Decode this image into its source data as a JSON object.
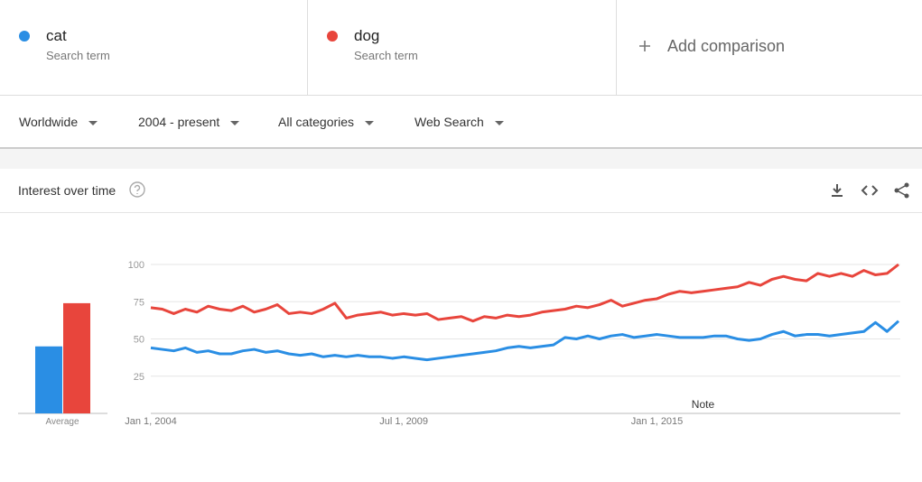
{
  "header": {
    "terms": [
      {
        "name": "cat",
        "subtitle": "Search term"
      },
      {
        "name": "dog",
        "subtitle": "Search term"
      }
    ],
    "add_comparison": "Add comparison"
  },
  "filters": [
    "Worldwide",
    "2004 - present",
    "All categories",
    "Web Search"
  ],
  "card": {
    "title": "Interest over time"
  },
  "chart_data": {
    "type": "line",
    "x": [
      "2004-01-01",
      "2004-04-01",
      "2004-07-01",
      "2004-10-01",
      "2005-01-01",
      "2005-04-01",
      "2005-07-01",
      "2005-10-01",
      "2006-01-01",
      "2006-04-01",
      "2006-07-01",
      "2006-10-01",
      "2007-01-01",
      "2007-04-01",
      "2007-07-01",
      "2007-10-01",
      "2008-01-01",
      "2008-04-01",
      "2008-07-01",
      "2008-10-01",
      "2009-01-01",
      "2009-04-01",
      "2009-07-01",
      "2009-10-01",
      "2010-01-01",
      "2010-04-01",
      "2010-07-01",
      "2010-10-01",
      "2011-01-01",
      "2011-04-01",
      "2011-07-01",
      "2011-10-01",
      "2012-01-01",
      "2012-04-01",
      "2012-07-01",
      "2012-10-01",
      "2013-01-01",
      "2013-04-01",
      "2013-07-01",
      "2013-10-01",
      "2014-01-01",
      "2014-04-01",
      "2014-07-01",
      "2014-10-01",
      "2015-01-01",
      "2015-04-01",
      "2015-07-01",
      "2015-10-01",
      "2016-01-01",
      "2016-04-01",
      "2016-07-01",
      "2016-10-01",
      "2017-01-01",
      "2017-04-01",
      "2017-07-01",
      "2017-10-01",
      "2018-01-01",
      "2018-04-01",
      "2018-07-01",
      "2018-10-01",
      "2019-01-01",
      "2019-04-01",
      "2019-07-01",
      "2019-10-01",
      "2020-01-01",
      "2020-04-01"
    ],
    "series": [
      {
        "name": "cat",
        "color": "#2a8ee4",
        "average": 45,
        "values": [
          44,
          43,
          42,
          44,
          41,
          42,
          40,
          40,
          42,
          43,
          41,
          42,
          40,
          39,
          40,
          38,
          39,
          38,
          39,
          38,
          38,
          37,
          38,
          37,
          36,
          37,
          38,
          39,
          40,
          41,
          42,
          44,
          45,
          44,
          45,
          46,
          51,
          50,
          52,
          50,
          52,
          53,
          51,
          52,
          53,
          52,
          51,
          51,
          51,
          52,
          52,
          50,
          49,
          50,
          53,
          55,
          52,
          53,
          53,
          52,
          53,
          54,
          55,
          61,
          55,
          62
        ]
      },
      {
        "name": "dog",
        "color": "#e8453c",
        "average": 74,
        "values": [
          71,
          70,
          67,
          70,
          68,
          72,
          70,
          69,
          72,
          68,
          70,
          73,
          67,
          68,
          67,
          70,
          74,
          64,
          66,
          67,
          68,
          66,
          67,
          66,
          67,
          63,
          64,
          65,
          62,
          65,
          64,
          66,
          65,
          66,
          68,
          69,
          70,
          72,
          71,
          73,
          76,
          72,
          74,
          76,
          77,
          80,
          82,
          81,
          82,
          83,
          84,
          85,
          88,
          86,
          90,
          92,
          90,
          89,
          94,
          92,
          94,
          92,
          96,
          93,
          94,
          100
        ]
      }
    ],
    "average_label": "Average",
    "xlim": [
      "2004-01-01",
      "2020-04-01"
    ],
    "xticks": [
      {
        "value": "2004-01-01",
        "label": "Jan 1, 2004"
      },
      {
        "value": "2009-07-01",
        "label": "Jul 1, 2009"
      },
      {
        "value": "2015-01-01",
        "label": "Jan 1, 2015"
      }
    ],
    "ylim": [
      0,
      100
    ],
    "yticks": [
      25,
      50,
      75,
      100
    ],
    "grid": true,
    "annotations": [
      {
        "text": "Note",
        "x": "2016-01-01"
      }
    ]
  }
}
